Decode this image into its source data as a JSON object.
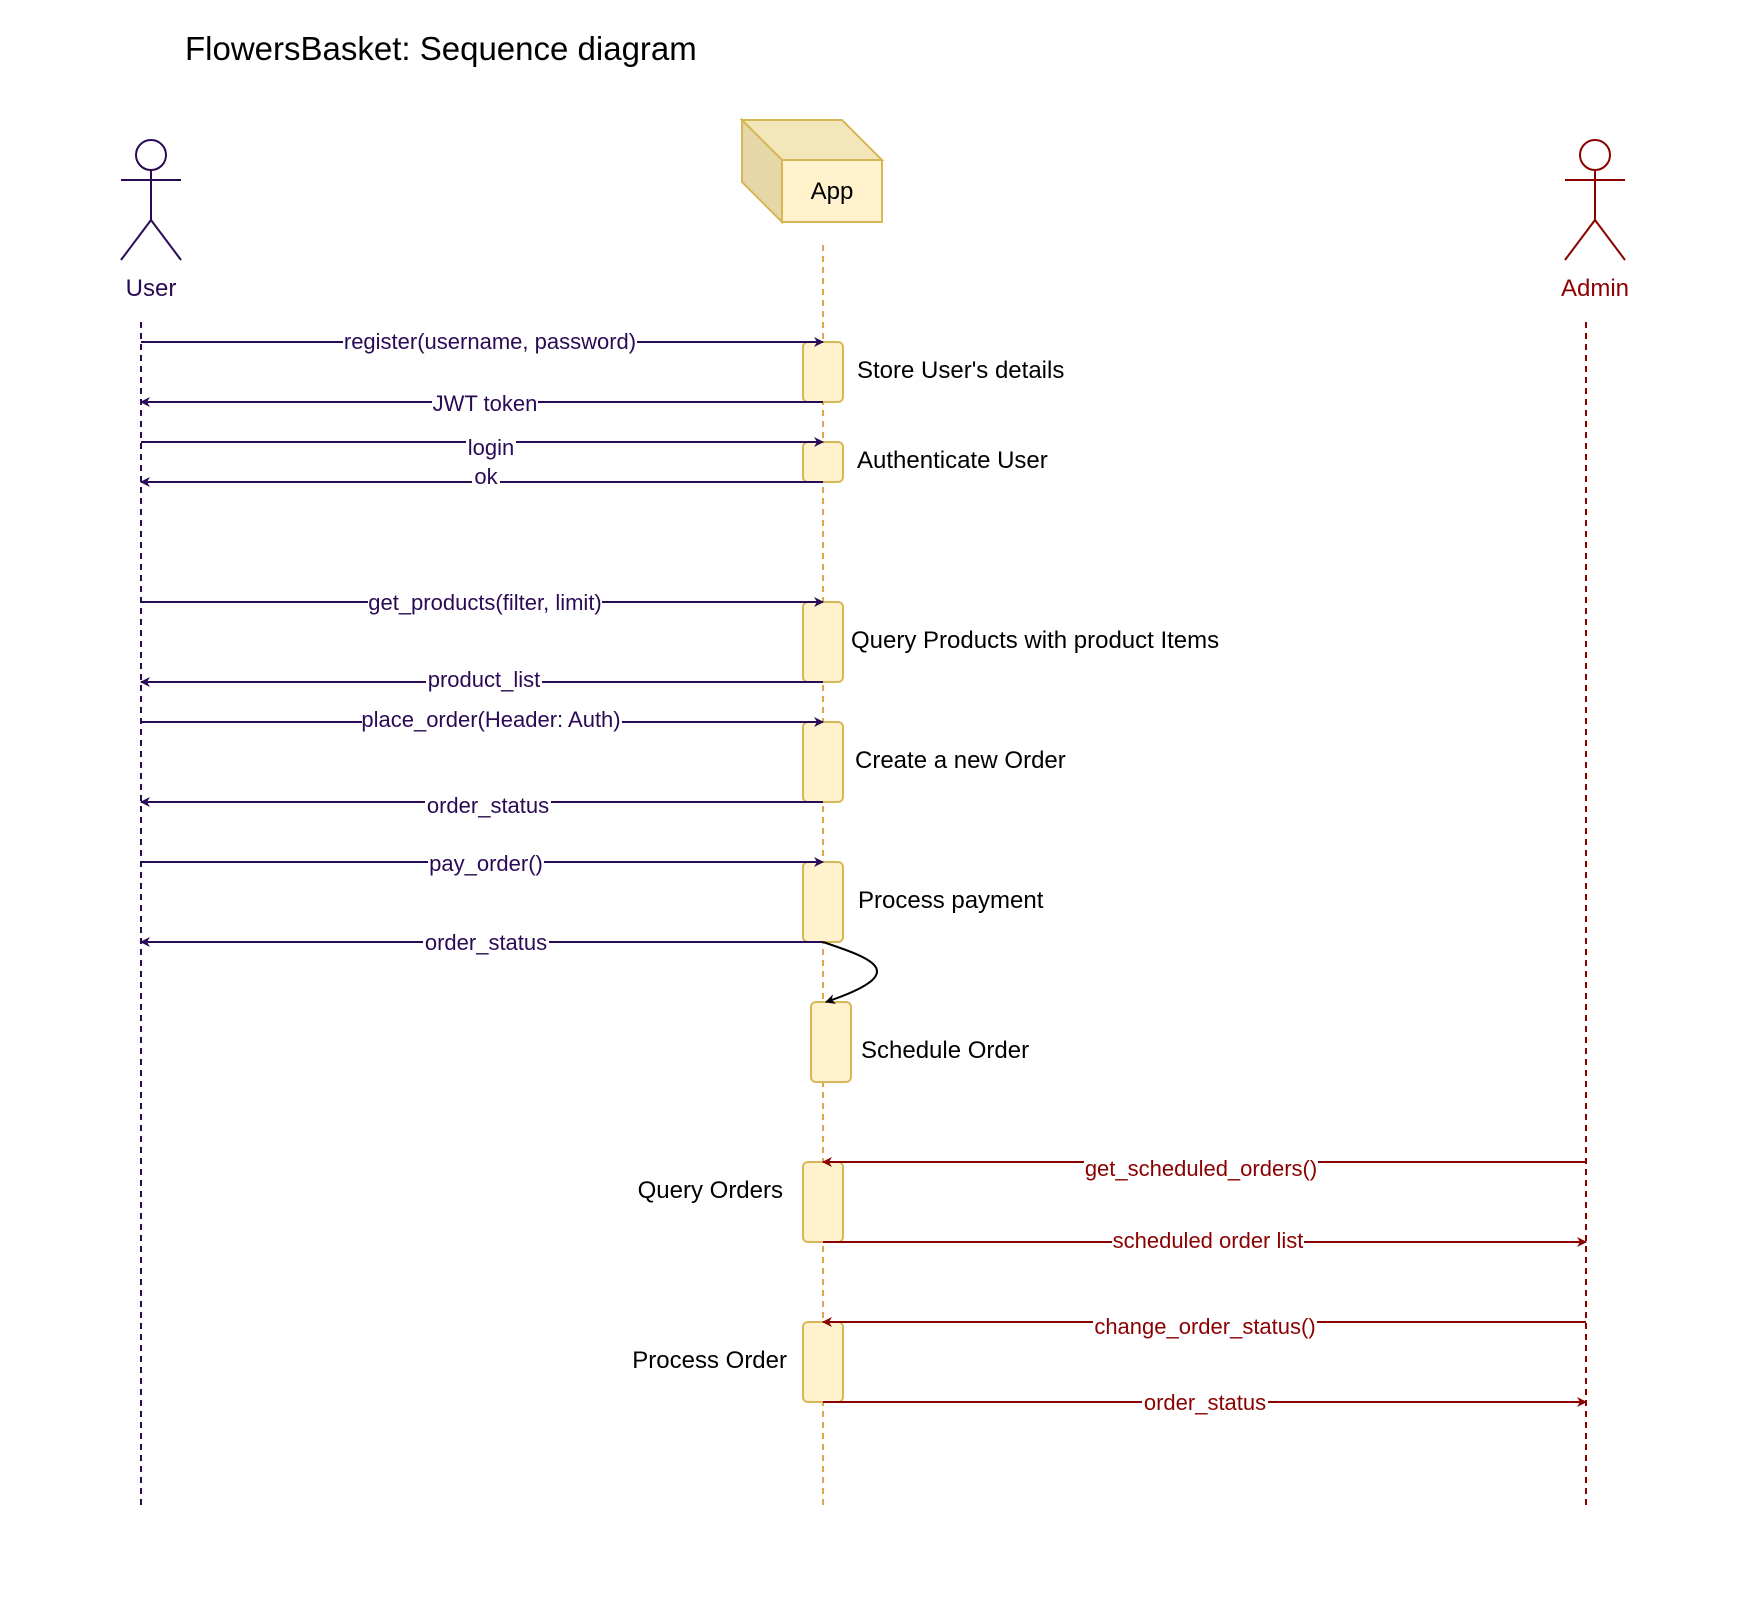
{
  "title": "FlowersBasket: Sequence diagram",
  "colors": {
    "user": "#2a0a55",
    "admin": "#8b0000",
    "app_lifeline": "#e0a648",
    "activation_fill": "#fff2cc",
    "activation_stroke": "#d6b656",
    "cube_front": "#fff2cc",
    "cube_side": "#e6d7a8",
    "cube_top": "#f3e6b8"
  },
  "participants": {
    "user": {
      "label": "User",
      "icon": "stick-figure-icon"
    },
    "app": {
      "label": "App",
      "icon": "cube-icon"
    },
    "admin": {
      "label": "Admin",
      "icon": "stick-figure-icon"
    }
  },
  "messages": [
    {
      "from": "user",
      "to": "app",
      "label": "register(username, password)"
    },
    {
      "from": "app",
      "to": "user",
      "label": "JWT token"
    },
    {
      "from": "user",
      "to": "app",
      "label": "login"
    },
    {
      "from": "app",
      "to": "user",
      "label": "ok"
    },
    {
      "from": "user",
      "to": "app",
      "label": "get_products(filter, limit)"
    },
    {
      "from": "app",
      "to": "user",
      "label": "product_list"
    },
    {
      "from": "user",
      "to": "app",
      "label": "place_order(Header: Auth)"
    },
    {
      "from": "app",
      "to": "user",
      "label": "order_status"
    },
    {
      "from": "user",
      "to": "app",
      "label": "pay_order()"
    },
    {
      "from": "app",
      "to": "user",
      "label": "order_status"
    },
    {
      "from": "app",
      "to": "app",
      "label": ""
    },
    {
      "from": "admin",
      "to": "app",
      "label": "get_scheduled_orders()"
    },
    {
      "from": "app",
      "to": "admin",
      "label": "scheduled order list"
    },
    {
      "from": "admin",
      "to": "app",
      "label": "change_order_status()"
    },
    {
      "from": "app",
      "to": "admin",
      "label": "order_status"
    }
  ],
  "activations": [
    {
      "label": "Store User's details"
    },
    {
      "label": "Authenticate User"
    },
    {
      "label": "Query Products with product Items"
    },
    {
      "label": "Create a new Order"
    },
    {
      "label": "Process payment"
    },
    {
      "label": "Schedule Order"
    },
    {
      "label": "Query Orders"
    },
    {
      "label": "Process Order"
    }
  ]
}
